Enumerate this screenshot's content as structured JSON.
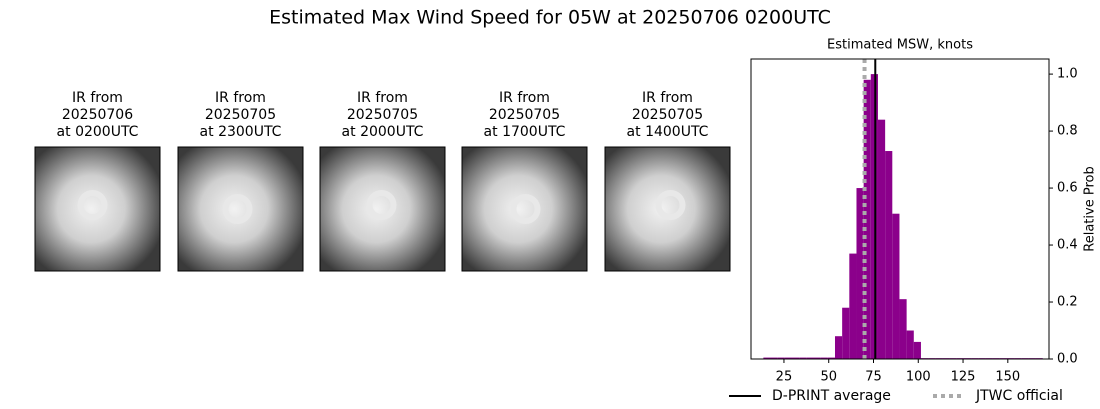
{
  "title": "Estimated Max Wind Speed for 05W at 20250706 0200UTC",
  "panels": [
    {
      "lines": [
        "IR from",
        "20250706",
        "at 0200UTC"
      ]
    },
    {
      "lines": [
        "IR from",
        "20250705",
        "at 2300UTC"
      ]
    },
    {
      "lines": [
        "IR from",
        "20250705",
        "at 2000UTC"
      ]
    },
    {
      "lines": [
        "IR from",
        "20250705",
        "at 1700UTC"
      ]
    },
    {
      "lines": [
        "IR from",
        "20250705",
        "at 1400UTC"
      ]
    }
  ],
  "chart_data": {
    "type": "histogram",
    "title": "Estimated MSW, knots",
    "y_label": "Relative Prob",
    "bins": [
      13.5,
      17.5,
      21.5,
      25.5,
      29.5,
      33.5,
      37.5,
      41.5,
      45.5,
      49.5,
      53.5,
      57.5,
      61.5,
      65.5,
      69.5,
      73.5,
      77.5,
      81.5,
      85.5,
      89.5,
      93.5,
      97.5,
      101.5,
      105.5,
      109.5,
      113.5,
      117.5,
      121.5,
      125.5,
      129.5,
      133.5,
      137.5,
      141.5,
      145.5,
      149.5,
      153.5,
      157.5,
      161.5,
      165.5,
      169.5
    ],
    "values": [
      0.005,
      0.005,
      0.005,
      0.005,
      0.005,
      0.005,
      0.005,
      0.005,
      0.005,
      0.005,
      0.08,
      0.18,
      0.37,
      0.6,
      0.98,
      1.0,
      0.84,
      0.73,
      0.51,
      0.21,
      0.1,
      0.06,
      0.003,
      0.003,
      0.003,
      0.003,
      0.003,
      0.003,
      0.003,
      0.003,
      0.003,
      0.003,
      0.003,
      0.003,
      0.003,
      0.003,
      0.003,
      0.003,
      0.003
    ],
    "color": "#8b008b",
    "lines": [
      {
        "name": "D-PRINT average",
        "x": 76,
        "color": "#000000",
        "style": "solid"
      },
      {
        "name": "JTWC official",
        "x": 70,
        "color": "#aaaaaa",
        "style": "dotted"
      }
    ],
    "xlim": [
      6.6,
      173
    ],
    "ylim": [
      0,
      1.053
    ],
    "xticks": [
      25,
      50,
      75,
      100,
      125,
      150
    ],
    "yticks": [
      {
        "value": 0,
        "label": "0.0"
      },
      0.2,
      0.4,
      0.6,
      0.8,
      {
        "value": 1,
        "label": "1.0"
      }
    ]
  }
}
